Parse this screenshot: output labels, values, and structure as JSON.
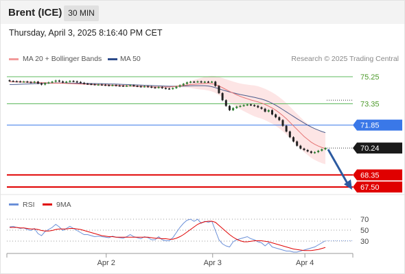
{
  "header": {
    "instrument": "Brent (ICE)",
    "timeframe": "30 MIN"
  },
  "datetime": "Thursday, April 3, 2025 8:16:40 PM CET",
  "legend": {
    "ma20": "MA 20 + Bollinger Bands",
    "ma50": "MA 50",
    "research": "Research © 2025 Trading Central"
  },
  "rsi_legend": {
    "rsi": "RSI",
    "ma": "9MA"
  },
  "colors": {
    "bullish": "#2e7d32",
    "bearish": "#222222",
    "ma20": "#e57373",
    "bollinger_fill": "#fde0e0",
    "ma50": "#4a5a8a",
    "support_red": "#e00000",
    "resistance_green": "#5cb85c",
    "pivot_blue": "#3a78e8",
    "arrow": "#2c5aa0",
    "rsi_line": "#6a8fd8",
    "rsi_ma": "#e00000"
  },
  "chart_data": {
    "type": "candlestick",
    "price_levels": [
      {
        "label": "75.25",
        "value": 75.25,
        "kind": "resistance"
      },
      {
        "label": "73.35",
        "value": 73.35,
        "kind": "resistance"
      },
      {
        "label": "71.85",
        "value": 71.85,
        "kind": "pivot"
      },
      {
        "label": "70.24",
        "value": 70.24,
        "kind": "current"
      },
      {
        "label": "68.35",
        "value": 68.35,
        "kind": "support"
      },
      {
        "label": "67.50",
        "value": 67.5,
        "kind": "support"
      }
    ],
    "x_tick_labels": [
      "Apr 2",
      "Apr 3",
      "Apr 4"
    ],
    "x_tick_index": [
      28,
      58,
      84
    ],
    "closes": [
      74.95,
      74.93,
      74.92,
      74.9,
      74.91,
      74.88,
      74.85,
      74.9,
      74.78,
      74.7,
      74.8,
      74.85,
      74.9,
      74.98,
      74.92,
      74.85,
      74.9,
      74.95,
      74.92,
      74.88,
      74.82,
      74.76,
      74.74,
      74.72,
      74.7,
      74.7,
      74.68,
      74.66,
      74.64,
      74.66,
      74.63,
      74.62,
      74.6,
      74.62,
      74.65,
      74.6,
      74.58,
      74.55,
      74.58,
      74.55,
      74.5,
      74.48,
      74.52,
      74.45,
      74.42,
      74.4,
      74.45,
      74.55,
      74.65,
      74.75,
      74.85,
      74.9,
      74.88,
      74.92,
      74.86,
      74.9,
      74.88,
      74.9,
      74.6,
      74.1,
      73.6,
      73.2,
      72.9,
      73.05,
      73.15,
      73.2,
      73.25,
      73.3,
      73.25,
      73.2,
      73.1,
      73.0,
      72.8,
      72.9,
      72.6,
      72.4,
      72.2,
      71.8,
      71.4,
      71.0,
      70.7,
      70.4,
      70.2,
      70.1,
      70.0,
      69.9,
      69.95,
      70.05,
      70.15,
      70.24
    ],
    "ma20": [
      74.9,
      74.9,
      74.89,
      74.89,
      74.88,
      74.87,
      74.86,
      74.85,
      74.84,
      74.83,
      74.82,
      74.81,
      74.8,
      74.8,
      74.8,
      74.79,
      74.78,
      74.77,
      74.76,
      74.75,
      74.74,
      74.73,
      74.72,
      74.71,
      74.7,
      74.69,
      74.68,
      74.67,
      74.66,
      74.65,
      74.64,
      74.63,
      74.62,
      74.61,
      74.6,
      74.59,
      74.58,
      74.57,
      74.56,
      74.55,
      74.54,
      74.53,
      74.52,
      74.52,
      74.52,
      74.53,
      74.55,
      74.57,
      74.6,
      74.63,
      74.66,
      74.7,
      74.72,
      74.74,
      74.76,
      74.78,
      74.78,
      74.76,
      74.7,
      74.6,
      74.48,
      74.35,
      74.22,
      74.1,
      73.98,
      73.87,
      73.78,
      73.7,
      73.62,
      73.55,
      73.48,
      73.4,
      73.3,
      73.18,
      73.05,
      72.9,
      72.72,
      72.52,
      72.3,
      72.05,
      71.8,
      71.55,
      71.3,
      71.05,
      70.85,
      70.65,
      70.5,
      70.38,
      70.28,
      70.2
    ],
    "ma50": [
      74.7,
      74.7,
      74.71,
      74.72,
      74.73,
      74.74,
      74.75,
      74.76,
      74.77,
      74.78,
      74.79,
      74.8,
      74.8,
      74.81,
      74.81,
      74.81,
      74.81,
      74.8,
      74.8,
      74.79,
      74.79,
      74.78,
      74.78,
      74.77,
      74.77,
      74.76,
      74.76,
      74.75,
      74.74,
      74.74,
      74.73,
      74.72,
      74.71,
      74.7,
      74.69,
      74.68,
      74.67,
      74.66,
      74.65,
      74.64,
      74.63,
      74.62,
      74.61,
      74.6,
      74.59,
      74.58,
      74.58,
      74.58,
      74.58,
      74.59,
      74.6,
      74.61,
      74.62,
      74.62,
      74.62,
      74.62,
      74.6,
      74.55,
      74.48,
      74.4,
      74.32,
      74.25,
      74.18,
      74.12,
      74.06,
      74.0,
      73.95,
      73.9,
      73.85,
      73.8,
      73.74,
      73.68,
      73.6,
      73.5,
      73.38,
      73.25,
      73.1,
      72.94,
      72.78,
      72.62,
      72.46,
      72.3,
      72.15,
      72.0,
      71.85,
      71.72,
      71.6,
      71.5,
      71.4,
      71.32
    ],
    "rsi": [
      55,
      56,
      54,
      52,
      53,
      50,
      48,
      52,
      42,
      38,
      46,
      50,
      54,
      60,
      55,
      48,
      52,
      56,
      52,
      48,
      44,
      40,
      40,
      38,
      36,
      37,
      36,
      35,
      34,
      37,
      35,
      34,
      33,
      36,
      40,
      36,
      34,
      32,
      36,
      34,
      30,
      30,
      36,
      30,
      28,
      28,
      34,
      44,
      54,
      62,
      68,
      70,
      66,
      70,
      62,
      66,
      64,
      66,
      48,
      30,
      22,
      18,
      16,
      26,
      30,
      32,
      34,
      36,
      32,
      30,
      26,
      24,
      18,
      24,
      16,
      14,
      12,
      10,
      8,
      8,
      6,
      6,
      8,
      10,
      12,
      14,
      16,
      20,
      24,
      28
    ],
    "rsi_ma": [
      54,
      54,
      54,
      53,
      53,
      52,
      51,
      51,
      50,
      48,
      47,
      47,
      48,
      50,
      51,
      51,
      51,
      52,
      52,
      51,
      50,
      48,
      46,
      44,
      42,
      40,
      38,
      37,
      36,
      36,
      35,
      35,
      35,
      35,
      35,
      35,
      35,
      35,
      35,
      35,
      34,
      33,
      33,
      32,
      32,
      31,
      31,
      33,
      36,
      40,
      45,
      50,
      55,
      60,
      63,
      65,
      66,
      66,
      64,
      58,
      52,
      46,
      40,
      35,
      31,
      28,
      26,
      26,
      27,
      28,
      28,
      28,
      27,
      26,
      24,
      22,
      20,
      18,
      16,
      14,
      12,
      11,
      10,
      9,
      9,
      9,
      10,
      11,
      13,
      15
    ],
    "rsi_levels": [
      70,
      50,
      30
    ],
    "forecast_arrow": {
      "from": 70.24,
      "to": 67.5
    }
  }
}
